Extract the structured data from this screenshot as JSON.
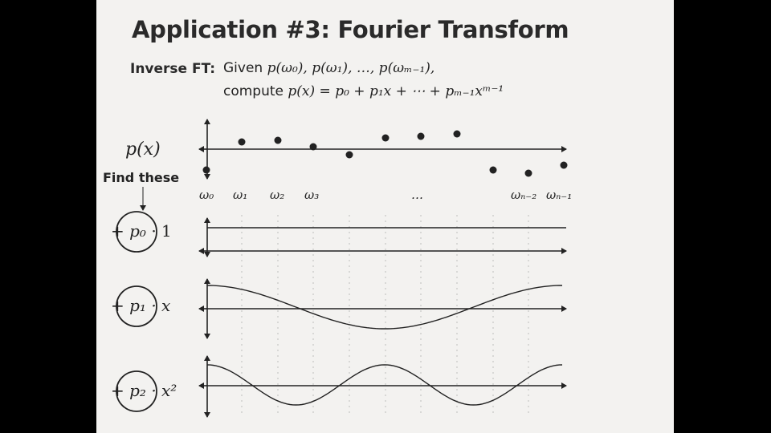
{
  "slide": {
    "title": "Application #3: Fourier Transform",
    "inverse_label": "Inverse FT:",
    "line1": {
      "given_word": "Given",
      "given_expr": "p(ω₀), p(ω₁), …, p(ωₘ₋₁),"
    },
    "line2": {
      "compute_word": "compute",
      "compute_expr": "p(x) = p₀ + p₁x + ⋯ + pₘ₋₁xᵐ⁻¹"
    },
    "px_label": "p(x)",
    "find_label": "Find these",
    "sample_labels": [
      "ω₀",
      "ω₁",
      "ω₂",
      "ω₃",
      "…",
      "ωₙ₋₂",
      "ωₙ₋₁"
    ],
    "terms": [
      {
        "sign": "+",
        "coef": "p₀",
        "basis": "· 1"
      },
      {
        "sign": "+",
        "coef": "p₁",
        "basis": "· x"
      },
      {
        "sign": "+",
        "coef": "p₂",
        "basis": "· x²"
      }
    ]
  }
}
